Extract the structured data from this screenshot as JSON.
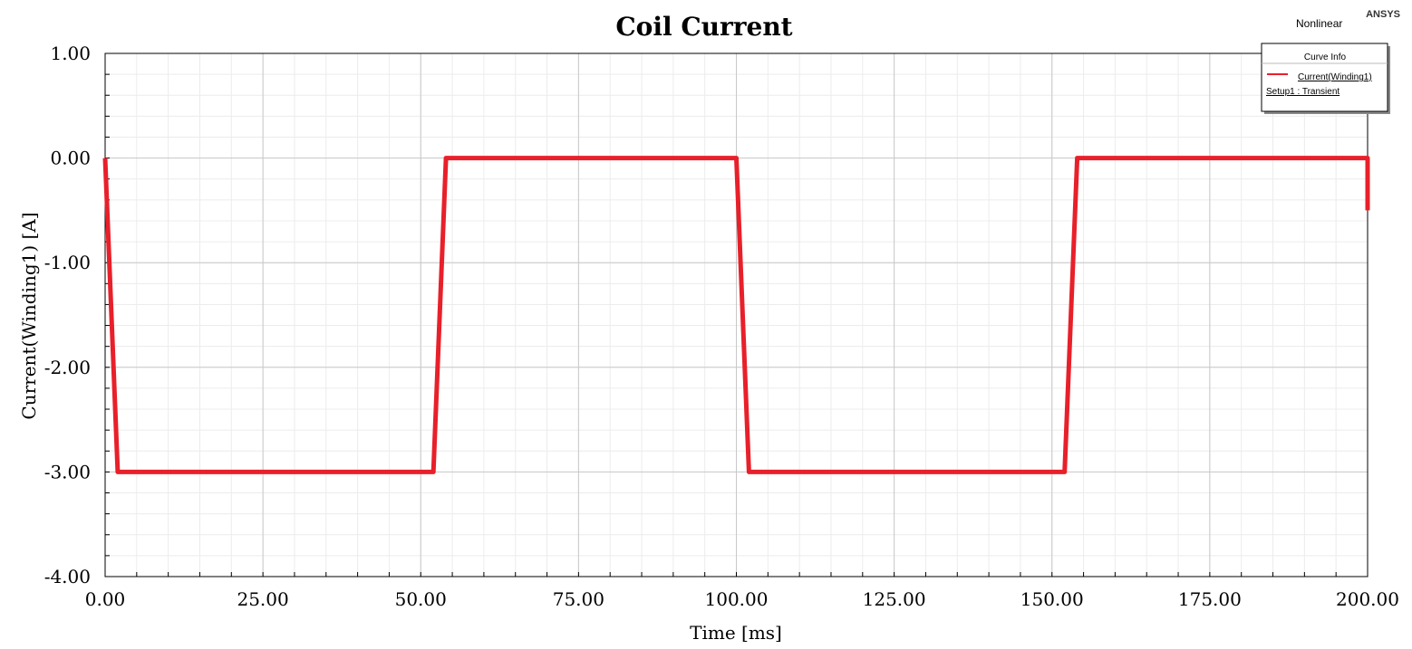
{
  "chart_data": {
    "type": "line",
    "title": "Coil Current",
    "xlabel": "Time [ms]",
    "ylabel": "Current(Winding1) [A]",
    "xlim": [
      0,
      200
    ],
    "ylim": [
      -4,
      1
    ],
    "x_ticks": [
      0,
      25,
      50,
      75,
      100,
      125,
      150,
      175,
      200
    ],
    "x_tick_labels": [
      "0.00",
      "25.00",
      "50.00",
      "75.00",
      "100.00",
      "125.00",
      "150.00",
      "175.00",
      "200.00"
    ],
    "y_ticks": [
      1,
      0,
      -1,
      -2,
      -3,
      -4
    ],
    "y_tick_labels": [
      "1.00",
      "0.00",
      "-1.00",
      "-2.00",
      "-3.00",
      "-4.00"
    ],
    "grid": true,
    "series": [
      {
        "name": "Current(Winding1)",
        "color": "#e8202a",
        "x": [
          0,
          2,
          52,
          54,
          100,
          102,
          152,
          154,
          200,
          200
        ],
        "y": [
          0,
          -3,
          -3,
          0,
          0,
          -3,
          -3,
          0,
          0,
          -0.5
        ]
      }
    ],
    "legend": {
      "title": "Curve Info",
      "entries": [
        "Current(Winding1)"
      ],
      "setup": "Setup1 : Transient",
      "position": "top-right"
    }
  },
  "annotations": {
    "brand": "ANSYS",
    "mode": "Nonlinear"
  }
}
